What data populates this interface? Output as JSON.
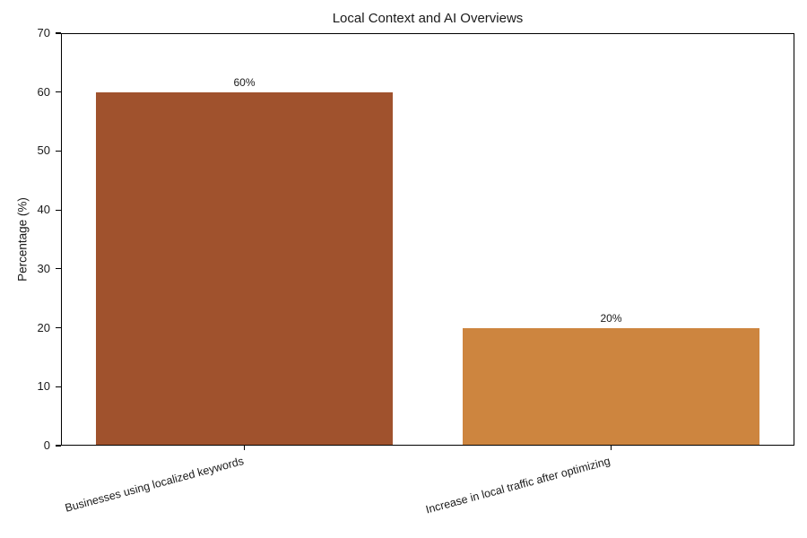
{
  "chart_data": {
    "type": "bar",
    "title": "Local Context and AI Overviews",
    "xlabel": "",
    "ylabel": "Percentage (%)",
    "categories": [
      "Businesses using localized keywords",
      "Increase in local traffic after optimizing"
    ],
    "values": [
      60,
      20
    ],
    "value_labels": [
      "60%",
      "20%"
    ],
    "bar_colors": [
      "#A0522D",
      "#CD853F"
    ],
    "ylim": [
      0,
      70
    ],
    "yticks": [
      0,
      10,
      20,
      30,
      40,
      50,
      60,
      70
    ],
    "grid": "off",
    "legend": "none",
    "xtick_rotation_deg": 15
  },
  "colors": {
    "background": "#ffffff",
    "axis": "#000000",
    "text": "#1a1a1a"
  }
}
